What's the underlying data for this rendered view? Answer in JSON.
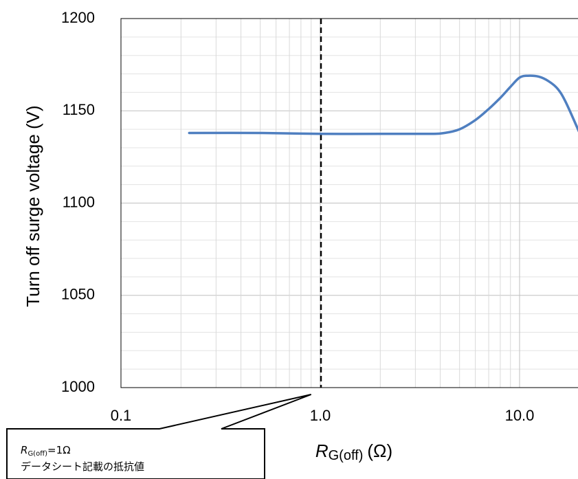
{
  "chart_data": {
    "type": "line",
    "title": "",
    "xlabel": "R",
    "xlabel_sub": "G(off)",
    "xlabel_unit": "(Ω)",
    "ylabel": "Turn off surge voltage (V)",
    "x_scale": "log",
    "xlim": [
      0.1,
      20
    ],
    "ylim": [
      1000,
      1200
    ],
    "x_ticks": [
      0.1,
      1.0,
      10.0
    ],
    "x_tick_labels": [
      "0.1",
      "1.0",
      "10.0"
    ],
    "y_ticks": [
      1000,
      1050,
      1100,
      1150,
      1200
    ],
    "y_tick_labels": [
      "1000",
      "1050",
      "1100",
      "1150",
      "1200"
    ],
    "grid": "major and minor (log x), minor y every 10",
    "series": [
      {
        "color": "#4f7fc0",
        "x": [
          0.22,
          0.5,
          1.0,
          2.0,
          3.5,
          4.2,
          5.0,
          6.0,
          7.0,
          8.0,
          9.0,
          10.0,
          11.0,
          12.5,
          14.0,
          15.5,
          17.0,
          20.0
        ],
        "y": [
          1138,
          1138,
          1137.5,
          1137.5,
          1137.5,
          1138,
          1140,
          1145,
          1151,
          1157,
          1163,
          1168,
          1169,
          1168.5,
          1166,
          1162,
          1155,
          1138
        ]
      }
    ],
    "reference_line": {
      "x": 1.0,
      "style": "dashed",
      "color": "#000000"
    },
    "annotation": {
      "line1_main": "R",
      "line1_sub": "G(off)",
      "line1_rest": "=1Ω",
      "line2": "データシート記載の抵抗値",
      "points_to_x": 0.9
    }
  }
}
